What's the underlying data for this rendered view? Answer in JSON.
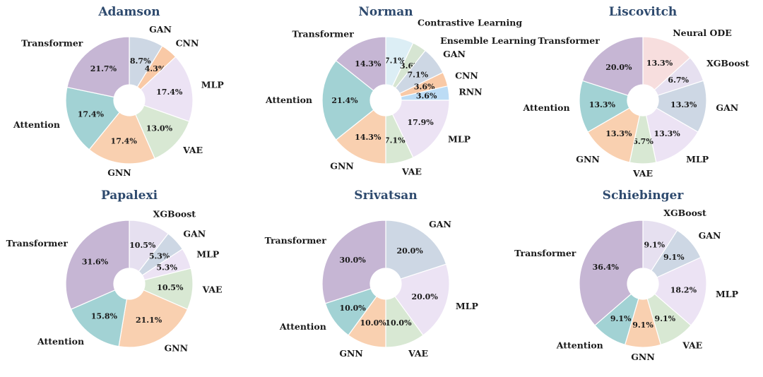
{
  "palette": {
    "Transformer": "#c6b6d4",
    "Attention": "#a2d2d4",
    "GNN": "#f9d0b0",
    "VAE": "#d8e8d3",
    "MLP": "#ece3f4",
    "CNN": "#f9c9a6",
    "GAN": "#cdd7e4",
    "Contrastive Learning": "#dceef5",
    "Ensemble Learning": "#d6e5d2",
    "RNN": "#bcdcf5",
    "Neural ODE": "#f7dede",
    "XGBoost": "#e6e0f0"
  },
  "chart_data": [
    {
      "type": "pie",
      "title": "Adamson",
      "slices": [
        {
          "label": "GAN",
          "value": 8.7,
          "pct": "8.7%"
        },
        {
          "label": "CNN",
          "value": 4.3,
          "pct": "4.3%"
        },
        {
          "label": "MLP",
          "value": 17.4,
          "pct": "17.4%"
        },
        {
          "label": "VAE",
          "value": 13.0,
          "pct": "13.0%"
        },
        {
          "label": "GNN",
          "value": 17.4,
          "pct": "17.4%"
        },
        {
          "label": "Attention",
          "value": 17.4,
          "pct": "17.4%"
        },
        {
          "label": "Transformer",
          "value": 21.7,
          "pct": "21.7%"
        }
      ]
    },
    {
      "type": "pie",
      "title": "Norman",
      "slices": [
        {
          "label": "Contrastive Learning",
          "value": 7.1,
          "pct": "7.1%"
        },
        {
          "label": "Ensemble Learning",
          "value": 3.6,
          "pct": "3.6%"
        },
        {
          "label": "GAN",
          "value": 7.1,
          "pct": "7.1%"
        },
        {
          "label": "CNN",
          "value": 3.6,
          "pct": "3.6%"
        },
        {
          "label": "RNN",
          "value": 3.6,
          "pct": "3.6%"
        },
        {
          "label": "MLP",
          "value": 17.9,
          "pct": "17.9%"
        },
        {
          "label": "VAE",
          "value": 7.1,
          "pct": "7.1%"
        },
        {
          "label": "GNN",
          "value": 14.3,
          "pct": "14.3%"
        },
        {
          "label": "Attention",
          "value": 21.4,
          "pct": "21.4%"
        },
        {
          "label": "Transformer",
          "value": 14.3,
          "pct": "14.3%"
        }
      ]
    },
    {
      "type": "pie",
      "title": "Liscovitch",
      "slices": [
        {
          "label": "Neural ODE",
          "value": 13.3,
          "pct": "13.3%"
        },
        {
          "label": "XGBoost",
          "value": 6.7,
          "pct": "6.7%"
        },
        {
          "label": "GAN",
          "value": 13.3,
          "pct": "13.3%"
        },
        {
          "label": "MLP",
          "value": 13.3,
          "pct": "13.3%"
        },
        {
          "label": "VAE",
          "value": 6.7,
          "pct": "6.7%"
        },
        {
          "label": "GNN",
          "value": 13.3,
          "pct": "13.3%"
        },
        {
          "label": "Attention",
          "value": 13.3,
          "pct": "13.3%"
        },
        {
          "label": "Transformer",
          "value": 20.0,
          "pct": "20.0%"
        }
      ]
    },
    {
      "type": "pie",
      "title": "Papalexi",
      "slices": [
        {
          "label": "XGBoost",
          "value": 10.5,
          "pct": "10.5%"
        },
        {
          "label": "GAN",
          "value": 5.3,
          "pct": "5.3%"
        },
        {
          "label": "MLP",
          "value": 5.3,
          "pct": "5.3%"
        },
        {
          "label": "VAE",
          "value": 10.5,
          "pct": "10.5%"
        },
        {
          "label": "GNN",
          "value": 21.1,
          "pct": "21.1%"
        },
        {
          "label": "Attention",
          "value": 15.8,
          "pct": "15.8%"
        },
        {
          "label": "Transformer",
          "value": 31.6,
          "pct": "31.6%"
        }
      ]
    },
    {
      "type": "pie",
      "title": "Srivatsan",
      "slices": [
        {
          "label": "GAN",
          "value": 20.0,
          "pct": "20.0%"
        },
        {
          "label": "MLP",
          "value": 20.0,
          "pct": "20.0%"
        },
        {
          "label": "VAE",
          "value": 10.0,
          "pct": "10.0%"
        },
        {
          "label": "GNN",
          "value": 10.0,
          "pct": "10.0%"
        },
        {
          "label": "Attention",
          "value": 10.0,
          "pct": "10.0%"
        },
        {
          "label": "Transformer",
          "value": 30.0,
          "pct": "30.0%"
        }
      ]
    },
    {
      "type": "pie",
      "title": "Schiebinger",
      "slices": [
        {
          "label": "XGBoost",
          "value": 9.1,
          "pct": "9.1%"
        },
        {
          "label": "GAN",
          "value": 9.1,
          "pct": "9.1%"
        },
        {
          "label": "MLP",
          "value": 18.2,
          "pct": "18.2%"
        },
        {
          "label": "VAE",
          "value": 9.1,
          "pct": "9.1%"
        },
        {
          "label": "GNN",
          "value": 9.1,
          "pct": "9.1%"
        },
        {
          "label": "Attention",
          "value": 9.1,
          "pct": "9.1%"
        },
        {
          "label": "Transformer",
          "value": 36.4,
          "pct": "36.4%"
        }
      ]
    }
  ]
}
